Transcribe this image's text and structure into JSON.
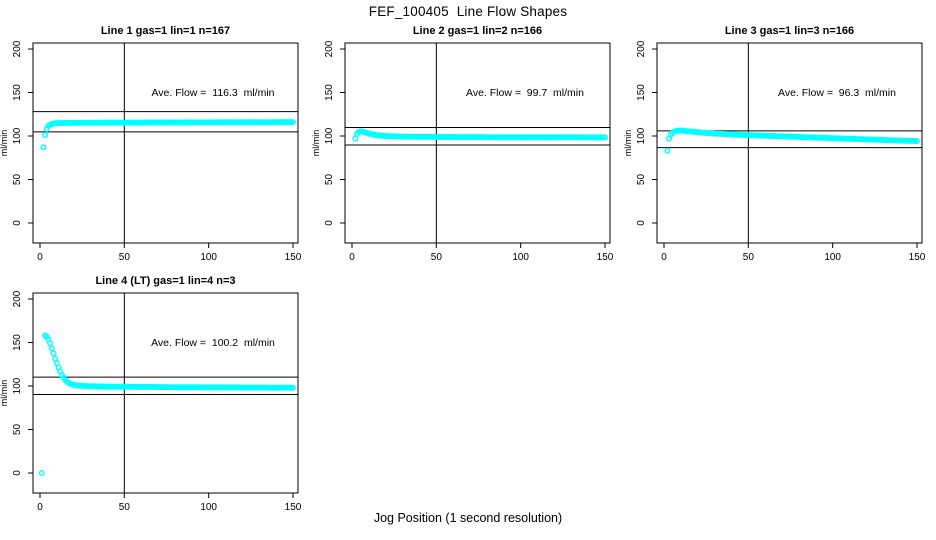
{
  "figure": {
    "title": "FEF_100405  Line Flow Shapes",
    "xlabel": "Jog Position (1 second resolution)",
    "background_color": "#ffffff",
    "point_color": "#00ffff",
    "axis_color": "#000000"
  },
  "chart_data": [
    {
      "type": "scatter",
      "title": "Line 1 gas=1 lin=1 n=167",
      "annotation": "Ave. Flow =  116.3  ml/min",
      "ave_flow_ml_min": 116.3,
      "n": 167,
      "ylabel": "ml/min",
      "x_ticks": [
        0,
        50,
        100,
        150
      ],
      "y_ticks": [
        0,
        50,
        100,
        150,
        200
      ],
      "xlim": [
        0,
        150
      ],
      "ylim": [
        -23,
        207
      ],
      "vline_x": 50,
      "hlines": [
        128.0,
        104.7
      ],
      "profile": [
        [
          4,
          108
        ],
        [
          5,
          111.5
        ],
        [
          6,
          113
        ],
        [
          7,
          113.8
        ],
        [
          8,
          114.3
        ],
        [
          10,
          114.8
        ],
        [
          15,
          115
        ],
        [
          20,
          115.1
        ],
        [
          30,
          115.3
        ],
        [
          50,
          115.4
        ],
        [
          70,
          115.5
        ],
        [
          90,
          115.6
        ],
        [
          110,
          115.7
        ],
        [
          130,
          115.8
        ],
        [
          150,
          116
        ]
      ],
      "outliers": [
        [
          2,
          87
        ],
        [
          3,
          101
        ]
      ]
    },
    {
      "type": "scatter",
      "title": "Line 2 gas=1 lin=2 n=166",
      "annotation": "Ave. Flow =  99.7  ml/min",
      "ave_flow_ml_min": 99.7,
      "n": 166,
      "ylabel": "ml/min",
      "x_ticks": [
        0,
        50,
        100,
        150
      ],
      "y_ticks": [
        0,
        50,
        100,
        150,
        200
      ],
      "xlim": [
        0,
        150
      ],
      "ylim": [
        -23,
        207
      ],
      "vline_x": 50,
      "hlines": [
        109.7,
        89.7
      ],
      "profile": [
        [
          2,
          97
        ],
        [
          3,
          102.5
        ],
        [
          4,
          104.5
        ],
        [
          5,
          105.3
        ],
        [
          6,
          105.2
        ],
        [
          7,
          104.6
        ],
        [
          8,
          104
        ],
        [
          10,
          102.8
        ],
        [
          12,
          101.8
        ],
        [
          15,
          100.8
        ],
        [
          20,
          100
        ],
        [
          25,
          99.6
        ],
        [
          30,
          99.3
        ],
        [
          40,
          99
        ],
        [
          60,
          98.8
        ],
        [
          90,
          98.6
        ],
        [
          120,
          98.5
        ],
        [
          150,
          98.4
        ]
      ],
      "outliers": []
    },
    {
      "type": "scatter",
      "title": "Line 3 gas=1 lin=3 n=166",
      "annotation": "Ave. Flow =  96.3  ml/min",
      "ave_flow_ml_min": 96.3,
      "n": 166,
      "ylabel": "ml/min",
      "x_ticks": [
        0,
        50,
        100,
        150
      ],
      "y_ticks": [
        0,
        50,
        100,
        150,
        200
      ],
      "xlim": [
        0,
        150
      ],
      "ylim": [
        -23,
        207
      ],
      "vline_x": 50,
      "hlines": [
        105.9,
        86.7
      ],
      "profile": [
        [
          3,
          97
        ],
        [
          4,
          101.5
        ],
        [
          5,
          103.5
        ],
        [
          6,
          104.8
        ],
        [
          8,
          106
        ],
        [
          10,
          106.3
        ],
        [
          12,
          106
        ],
        [
          15,
          105.3
        ],
        [
          20,
          104.3
        ],
        [
          25,
          103.5
        ],
        [
          30,
          102.8
        ],
        [
          40,
          101.8
        ],
        [
          50,
          101
        ],
        [
          70,
          99.6
        ],
        [
          90,
          98.2
        ],
        [
          110,
          96.8
        ],
        [
          130,
          95.4
        ],
        [
          150,
          94.2
        ]
      ],
      "outliers": [
        [
          2,
          83
        ]
      ]
    },
    {
      "type": "scatter",
      "title": "Line 4 (LT) gas=1 lin=4 n=3",
      "annotation": "Ave. Flow =  100.2  ml/min",
      "ave_flow_ml_min": 100.2,
      "n": 3,
      "ylabel": "ml/min",
      "x_ticks": [
        0,
        50,
        100,
        150
      ],
      "y_ticks": [
        0,
        50,
        100,
        150,
        200
      ],
      "xlim": [
        0,
        150
      ],
      "ylim": [
        -23,
        207
      ],
      "vline_x": 50,
      "hlines": [
        110.2,
        90.2
      ],
      "profile": [
        [
          3,
          158
        ],
        [
          4,
          156.5
        ],
        [
          5,
          153.5
        ],
        [
          6,
          149
        ],
        [
          7,
          143.5
        ],
        [
          8,
          137.5
        ],
        [
          9,
          131.5
        ],
        [
          10,
          126
        ],
        [
          11,
          121
        ],
        [
          12,
          116.5
        ],
        [
          13,
          112.5
        ],
        [
          14,
          109.5
        ],
        [
          15,
          107
        ],
        [
          16,
          105
        ],
        [
          17,
          103.5
        ],
        [
          18,
          102.5
        ],
        [
          19,
          101.8
        ],
        [
          20,
          101.3
        ],
        [
          22,
          100.6
        ],
        [
          25,
          100.1
        ],
        [
          30,
          99.7
        ],
        [
          40,
          99.3
        ],
        [
          60,
          98.9
        ],
        [
          90,
          98.5
        ],
        [
          120,
          98.2
        ],
        [
          150,
          98
        ]
      ],
      "outliers": [
        [
          1,
          0
        ]
      ]
    }
  ]
}
